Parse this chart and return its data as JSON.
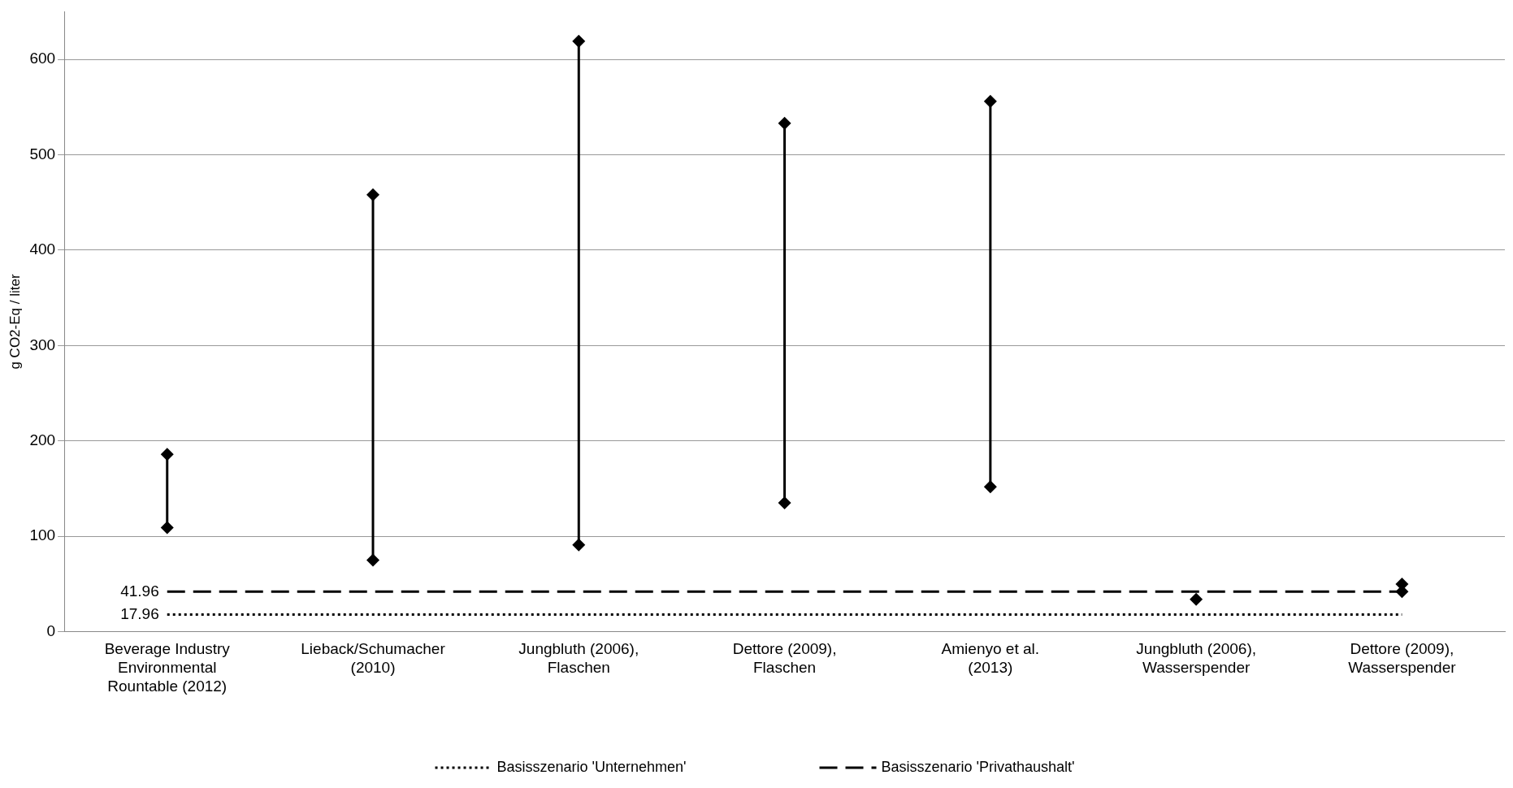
{
  "chart_data": {
    "type": "line",
    "ylabel": "g CO2-Eq / liter",
    "categories": [
      "Beverage Industry Environmental Rountable (2012)",
      "Lieback/Schumacher (2010)",
      "Jungbluth (2006), Flaschen",
      "Dettore (2009), Flaschen",
      "Amienyo et al. (2013)",
      "Jungbluth (2006), Wasserspender",
      "Dettore (2009), Wasserspender"
    ],
    "series": [
      {
        "color": "#000000",
        "marker": "diamond",
        "x": [
          "Beverage Industry Environmental Rountable (2012)",
          "Beverage Industry Environmental Rountable (2012)"
        ],
        "values": [
          109,
          186
        ]
      },
      {
        "color": "#000000",
        "marker": "diamond",
        "x": [
          "Lieback/Schumacher (2010)",
          "Lieback/Schumacher (2010)"
        ],
        "values": [
          75,
          458
        ]
      },
      {
        "color": "#000000",
        "marker": "diamond",
        "x": [
          "Jungbluth (2006), Flaschen",
          "Jungbluth (2006), Flaschen"
        ],
        "values": [
          91,
          619
        ]
      },
      {
        "color": "#000000",
        "marker": "diamond",
        "x": [
          "Dettore (2009), Flaschen",
          "Dettore (2009), Flaschen"
        ],
        "values": [
          135,
          533
        ]
      },
      {
        "color": "#000000",
        "marker": "diamond",
        "x": [
          "Amienyo et al. (2013)",
          "Amienyo et al. (2013)"
        ],
        "values": [
          152,
          556
        ]
      },
      {
        "color": "#000000",
        "marker": "diamond",
        "x": [
          "Jungbluth (2006), Wasserspender"
        ],
        "values": [
          34
        ]
      },
      {
        "type": "scatter",
        "color": "#000000",
        "marker": "diamond",
        "x": [
          "Dettore (2009), Wasserspender",
          "Dettore (2009), Wasserspender"
        ],
        "values": [
          42,
          50
        ]
      },
      {
        "name": "Basisszenario 'Unternehmen'",
        "color": "#000000",
        "marker": "none",
        "line_style": "dotted",
        "values": [
          17.96,
          17.96,
          17.96,
          17.96,
          17.96,
          17.96,
          17.96
        ],
        "value_labels": [
          "17.96",
          null,
          null,
          null,
          null,
          null,
          null
        ]
      },
      {
        "name": "Basisszenario 'Privathaushalt'",
        "color": "#000000",
        "marker": "none",
        "line_style": "dashed",
        "values": [
          41.96,
          41.96,
          41.96,
          41.96,
          41.96,
          41.96,
          41.96
        ],
        "value_labels": [
          "41.96",
          null,
          null,
          null,
          null,
          null,
          null
        ]
      }
    ],
    "ylim": [
      0,
      650
    ],
    "yticks": [
      0,
      100,
      200,
      300,
      400,
      500,
      600
    ],
    "grid": "y",
    "legend": "bottom"
  }
}
